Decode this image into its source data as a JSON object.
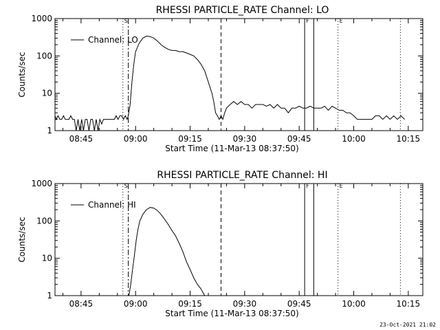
{
  "chart_data": [
    {
      "type": "line",
      "title": "RHESSI PARTICLE_RATE Channel: LO",
      "xlabel": "Start Time (11-Mar-13 08:37:50)",
      "ylabel": "Counts/sec",
      "x_ticks": [
        "08:45",
        "09:00",
        "09:15",
        "09:30",
        "09:45",
        "10:00",
        "10:15"
      ],
      "y_ticks": [
        "1",
        "10",
        "100",
        "1000"
      ],
      "y_scale": "log",
      "ylim": [
        1,
        1000
      ],
      "xlim": [
        "08:37:50",
        "10:19:00"
      ],
      "legend": "top-left",
      "grid": false,
      "series": [
        {
          "name": "Channel: LO",
          "time": [
            "08:37:50",
            "08:38:10",
            "08:38:40",
            "08:39:10",
            "08:39:40",
            "08:40:10",
            "08:40:40",
            "08:41:10",
            "08:41:40",
            "08:42:10",
            "08:42:40",
            "08:43:10",
            "08:43:40",
            "08:44:10",
            "08:44:40",
            "08:45:10",
            "08:45:40",
            "08:46:10",
            "08:46:40",
            "08:47:10",
            "08:47:40",
            "08:48:10",
            "08:48:40",
            "08:49:10",
            "08:49:40",
            "08:50:10",
            "08:50:40",
            "08:51:10",
            "08:51:40",
            "08:52:10",
            "08:52:40",
            "08:53:10",
            "08:53:40",
            "08:54:10",
            "08:54:40",
            "08:55:10",
            "08:55:40",
            "08:56:10",
            "08:56:40",
            "08:57:10",
            "08:57:40",
            "08:58:00",
            "08:58:30",
            "08:59:00",
            "08:59:30",
            "09:00:00",
            "09:01:00",
            "09:02:00",
            "09:03:00",
            "09:04:00",
            "09:05:00",
            "09:06:00",
            "09:07:00",
            "09:08:00",
            "09:09:00",
            "09:10:00",
            "09:11:00",
            "09:12:00",
            "09:13:00",
            "09:14:00",
            "09:15:00",
            "09:16:00",
            "09:17:00",
            "09:18:00",
            "09:19:00",
            "09:20:00",
            "09:21:00",
            "09:21:30",
            "09:22:00",
            "09:22:30",
            "09:23:00",
            "09:23:30",
            "09:24:00",
            "09:24:30",
            "09:25:00",
            "09:26:00",
            "09:27:00",
            "09:28:00",
            "09:29:00",
            "09:30:00",
            "09:31:00",
            "09:32:00",
            "09:33:00",
            "09:34:00",
            "09:35:00",
            "09:36:00",
            "09:37:00",
            "09:38:00",
            "09:39:00",
            "09:40:00",
            "09:41:00",
            "09:42:00",
            "09:43:00",
            "09:44:00",
            "09:45:00",
            "09:46:00",
            "09:47:00",
            "09:48:00",
            "09:49:00",
            "09:50:00",
            "09:51:00",
            "09:52:00",
            "09:53:00",
            "09:54:00",
            "09:55:00",
            "09:56:00",
            "09:57:00",
            "09:58:00",
            "09:59:00",
            "10:00:00",
            "10:01:00",
            "10:02:00",
            "10:03:00",
            "10:04:00",
            "10:05:00",
            "10:06:00",
            "10:07:00",
            "10:08:00",
            "10:09:00",
            "10:10:00",
            "10:11:00",
            "10:12:00",
            "10:13:00",
            "10:14:00"
          ],
          "values": [
            2.5,
            2,
            2.5,
            2,
            2,
            2.5,
            2,
            2,
            2,
            2.5,
            2,
            2,
            1,
            2,
            1,
            2,
            1,
            2,
            2,
            1,
            2,
            2,
            1,
            2,
            1,
            2,
            1.5,
            2,
            2,
            2,
            2,
            2,
            2,
            2,
            2.5,
            2,
            2.5,
            2.5,
            2,
            2.5,
            2,
            2.5,
            5,
            20,
            60,
            130,
            220,
            300,
            340,
            330,
            300,
            250,
            200,
            170,
            150,
            140,
            140,
            130,
            130,
            120,
            110,
            100,
            80,
            60,
            40,
            20,
            10,
            6,
            3,
            2.5,
            2,
            2.5,
            2,
            3,
            4,
            5,
            6,
            5,
            6,
            5,
            5,
            4,
            5,
            5,
            5,
            4.5,
            5,
            4,
            5,
            4,
            4,
            3,
            4,
            4,
            4.5,
            4,
            4,
            4.5,
            4,
            4,
            4,
            4.5,
            3.5,
            4.5,
            4,
            3.5,
            3.5,
            3,
            3,
            2.5,
            2,
            2,
            2,
            2,
            2,
            2.5,
            2.5,
            2,
            2.5,
            2,
            2.5,
            2,
            2.5,
            2
          ]
        }
      ],
      "markers": [
        {
          "label": "S",
          "time": "08:56:30",
          "style": "dotted"
        },
        {
          "label": "",
          "time": "08:58:00",
          "style": "dash-dot"
        },
        {
          "label": "",
          "time": "09:23:30",
          "style": "dashed"
        },
        {
          "label": "F",
          "time": "09:46:30",
          "style": "solid"
        },
        {
          "label": "",
          "time": "09:49:00",
          "style": "solid"
        },
        {
          "label": "E",
          "time": "09:55:40",
          "style": "dotted"
        },
        {
          "label": "",
          "time": "10:12:50",
          "style": "dotted"
        }
      ]
    },
    {
      "type": "line",
      "title": "RHESSI PARTICLE_RATE Channel: HI",
      "xlabel": "Start Time (11-Mar-13 08:37:50)",
      "ylabel": "Counts/sec",
      "x_ticks": [
        "08:45",
        "09:00",
        "09:15",
        "09:30",
        "09:45",
        "10:00",
        "10:15"
      ],
      "y_ticks": [
        "1",
        "10",
        "100",
        "1000"
      ],
      "y_scale": "log",
      "ylim": [
        1,
        1000
      ],
      "xlim": [
        "08:37:50",
        "10:19:00"
      ],
      "legend": "top-left",
      "grid": false,
      "series": [
        {
          "name": "Channel: HI",
          "time": [
            "08:58:10",
            "08:58:40",
            "08:59:10",
            "08:59:40",
            "09:00:10",
            "09:00:40",
            "09:01:10",
            "09:02:00",
            "09:03:00",
            "09:04:00",
            "09:05:00",
            "09:06:00",
            "09:07:00",
            "09:08:00",
            "09:09:00",
            "09:10:00",
            "09:11:00",
            "09:12:00",
            "09:13:00",
            "09:14:00",
            "09:15:00",
            "09:16:00",
            "09:17:00",
            "09:18:00",
            "09:19:00"
          ],
          "values": [
            1,
            2,
            5,
            12,
            30,
            60,
            100,
            150,
            200,
            230,
            220,
            190,
            150,
            110,
            80,
            55,
            40,
            25,
            15,
            8,
            5,
            3,
            2,
            1.5,
            1
          ]
        }
      ],
      "markers": [
        {
          "label": "S",
          "time": "08:56:30",
          "style": "dotted"
        },
        {
          "label": "",
          "time": "08:58:00",
          "style": "dash-dot"
        },
        {
          "label": "",
          "time": "09:23:30",
          "style": "dashed"
        },
        {
          "label": "F",
          "time": "09:46:30",
          "style": "solid"
        },
        {
          "label": "",
          "time": "09:49:00",
          "style": "solid"
        },
        {
          "label": "E",
          "time": "09:55:40",
          "style": "dotted"
        },
        {
          "label": "",
          "time": "10:12:50",
          "style": "dotted"
        }
      ]
    }
  ],
  "footer": {
    "date_stamp": "23-Oct-2021 21:02"
  }
}
